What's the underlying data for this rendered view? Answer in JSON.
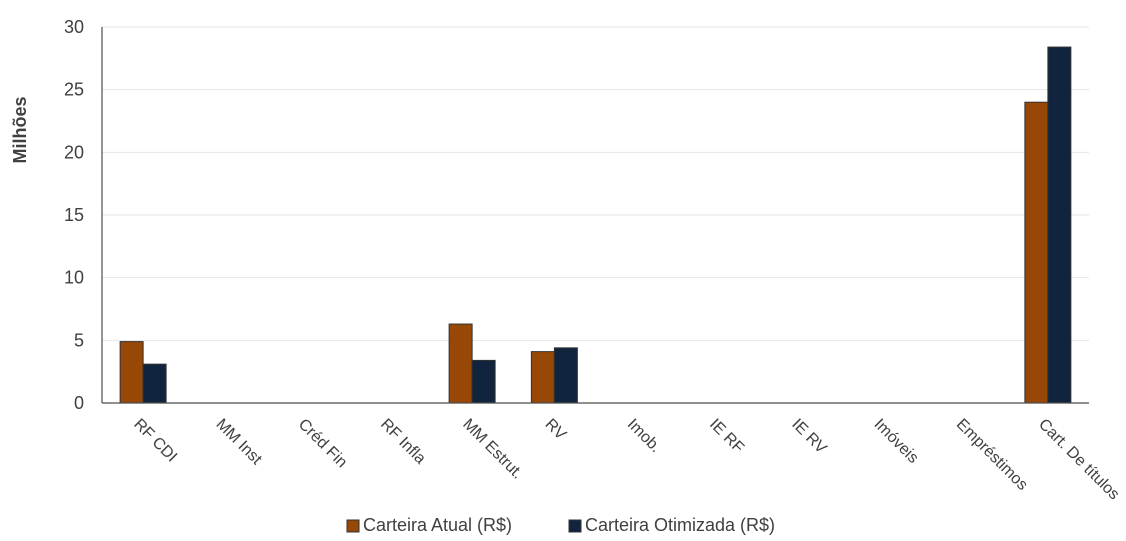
{
  "chart_data": {
    "type": "bar",
    "title": "",
    "xlabel": "",
    "ylabel": "Milhões",
    "ylim": [
      0,
      30
    ],
    "yticks": [
      0,
      5,
      10,
      15,
      20,
      25,
      30
    ],
    "grid": true,
    "legend_position": "bottom",
    "categories": [
      "RF CDI",
      "MM Inst",
      "Créd Fin",
      "RF Infla",
      "MM Estrut.",
      "RV",
      "Imob.",
      "IE RF",
      "IE RV",
      "Imóveis",
      "Empréstimos",
      "Cart. De títulos"
    ],
    "series": [
      {
        "name": "Carteira Atual (R$)",
        "color": "#974706",
        "values": [
          4.9,
          0,
          0,
          0,
          6.3,
          4.1,
          0,
          0,
          0,
          0,
          0,
          24.0
        ]
      },
      {
        "name": "Carteira Otimizada (R$)",
        "color": "#10243e",
        "values": [
          3.1,
          0,
          0,
          0,
          3.4,
          4.4,
          0,
          0,
          0,
          0,
          0,
          28.4
        ]
      }
    ]
  }
}
